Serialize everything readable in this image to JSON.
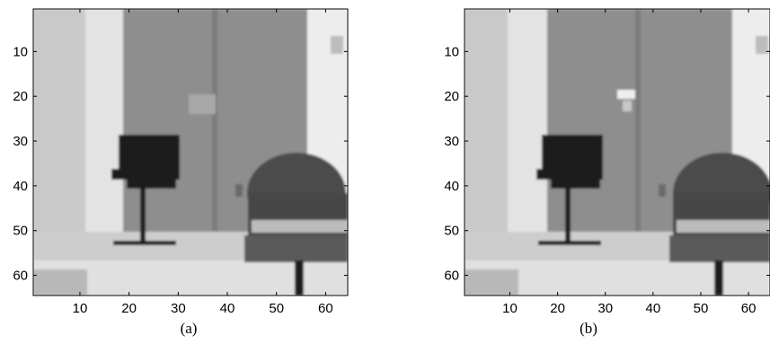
{
  "panels": [
    {
      "id": "a",
      "caption": "(a)",
      "x_ticks": [
        "10",
        "20",
        "30",
        "40",
        "50",
        "60"
      ],
      "y_ticks": [
        "10",
        "20",
        "30",
        "40",
        "50",
        "60"
      ],
      "x_tick_values": [
        10,
        20,
        30,
        40,
        50,
        60
      ],
      "y_tick_values": [
        10,
        20,
        30,
        40,
        50,
        60
      ],
      "xlim": [
        0.5,
        64.5
      ],
      "ylim": [
        0.5,
        64.5
      ]
    },
    {
      "id": "b",
      "caption": "(b)",
      "x_ticks": [
        "10",
        "20",
        "30",
        "40",
        "50",
        "60"
      ],
      "y_ticks": [
        "10",
        "20",
        "30",
        "40",
        "50",
        "60"
      ],
      "x_tick_values": [
        10,
        20,
        30,
        40,
        50,
        60
      ],
      "y_tick_values": [
        10,
        20,
        30,
        40,
        50,
        60
      ],
      "xlim": [
        0.5,
        64.5
      ],
      "ylim": [
        0.5,
        64.5
      ]
    }
  ],
  "colors": {
    "wall": "#d9d9d9",
    "wall_bright": "#efefef",
    "door": "#8c8c8c",
    "door_frame": "#6f6f6f",
    "floor": "#cfcfcf",
    "dark_chair": "#1e1e1e",
    "office_chair": "#4a4a4a",
    "chair_band": "#b9b9b9"
  }
}
